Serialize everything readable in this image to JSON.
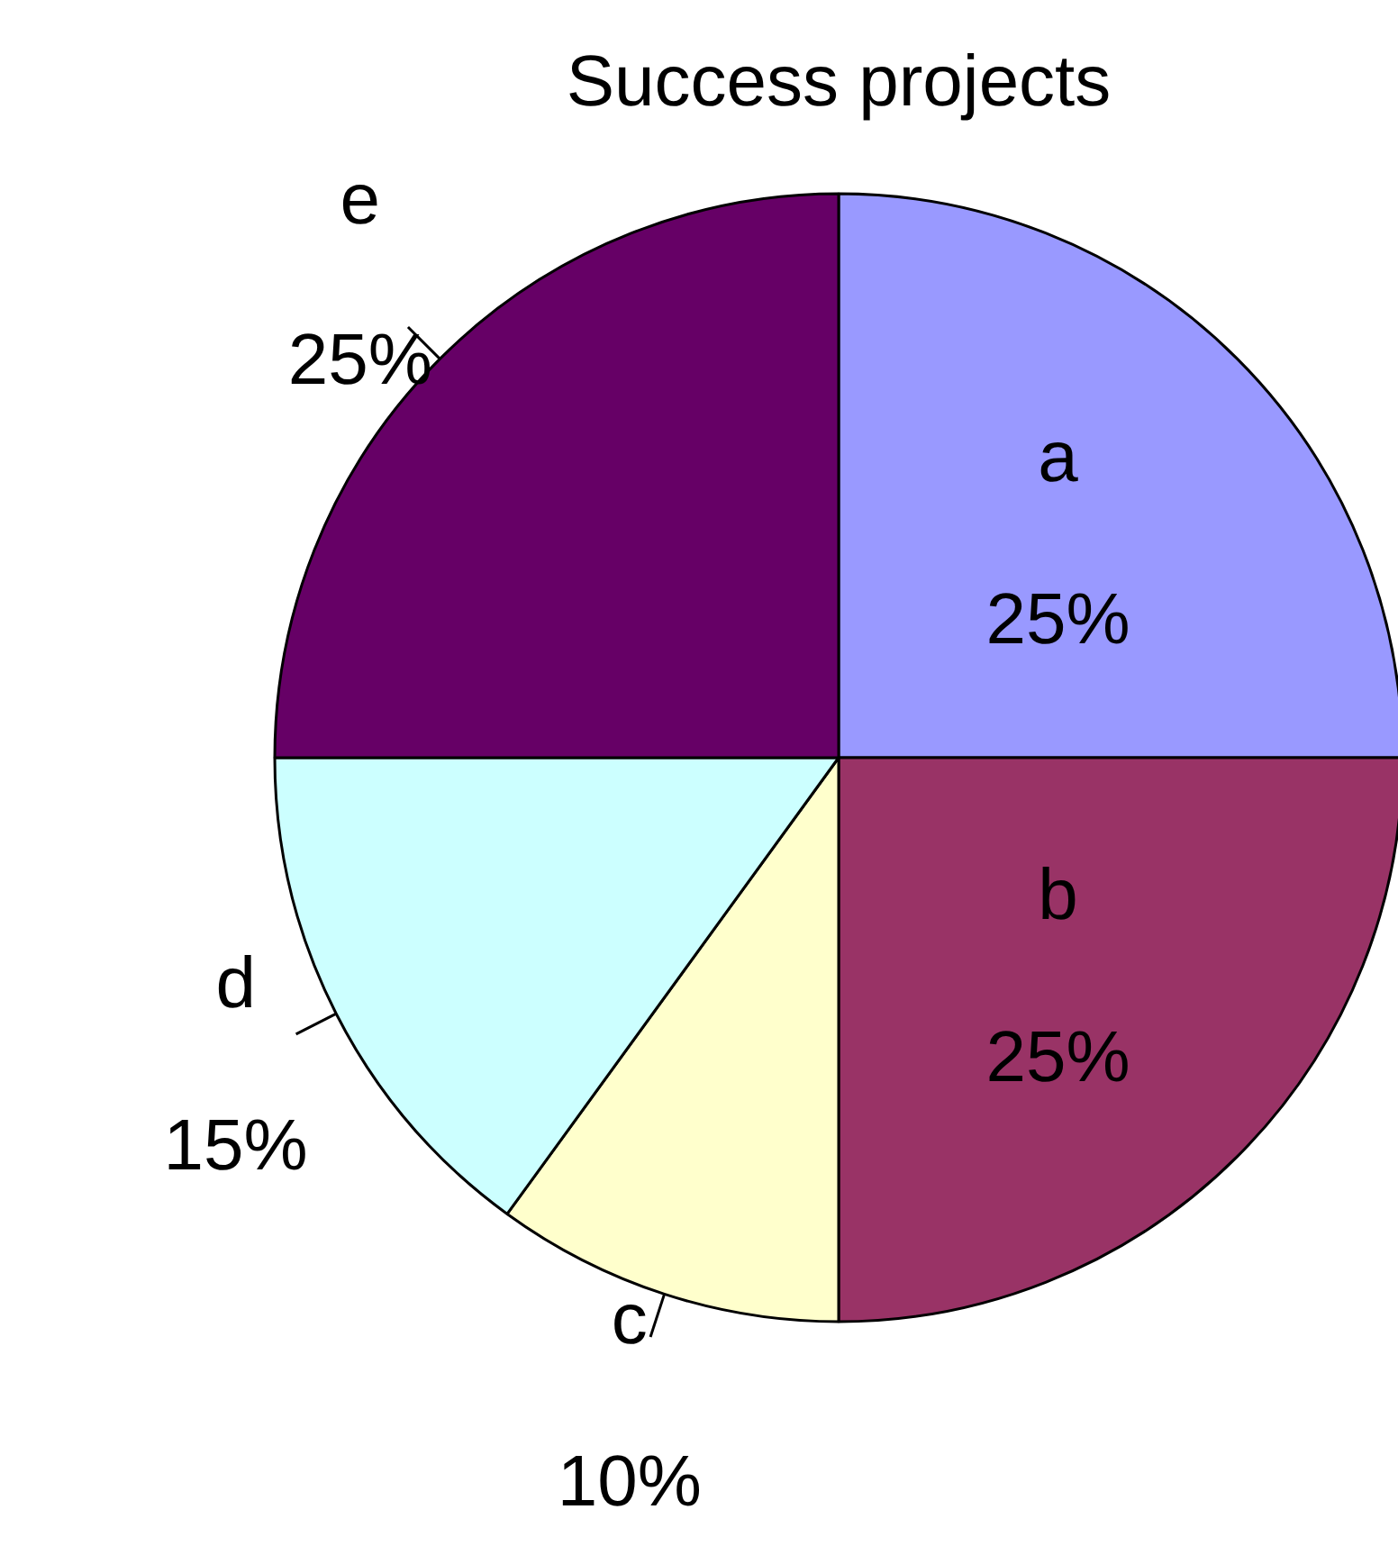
{
  "chart_data": {
    "type": "pie",
    "title": "Success projects",
    "categories": [
      "a",
      "b",
      "c",
      "d",
      "e"
    ],
    "values": [
      25,
      25,
      10,
      15,
      25
    ],
    "value_labels": [
      "25%",
      "25%",
      "10%",
      "15%",
      "25%"
    ],
    "colors": [
      "#9999ff",
      "#993366",
      "#ffffcc",
      "#ccffff",
      "#660066"
    ]
  }
}
